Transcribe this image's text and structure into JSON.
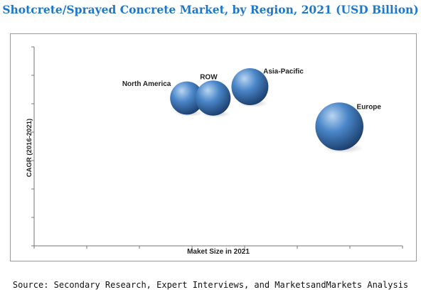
{
  "title": "Shotcrete/Sprayed Concrete Market, by Region, 2021 (USD Billion)",
  "source": "Source: Secondary Research, Expert Interviews, and MarketsandMarkets Analysis",
  "colors": {
    "title": "#1f77c8",
    "bubble_light": "#b9d6f2",
    "bubble_mid": "#4a86c8",
    "bubble_dark": "#1c3f6e",
    "axis": "#777777"
  },
  "chart_data": {
    "type": "scatter",
    "variant": "bubble",
    "xlabel": "Maket Size in 2021",
    "ylabel": "CAGR (2016-2021)",
    "xlim": [
      0,
      7
    ],
    "ylim": [
      0,
      7
    ],
    "grid": false,
    "legend": "none",
    "tick_labels_shown": false,
    "points": [
      {
        "label": "North America",
        "x": 2.9,
        "y": 5.2,
        "size": 0.9
      },
      {
        "label": "ROW",
        "x": 3.4,
        "y": 5.2,
        "size": 0.95
      },
      {
        "label": "Asia-Pacific",
        "x": 4.1,
        "y": 5.6,
        "size": 1.0
      },
      {
        "label": "Europe",
        "x": 5.8,
        "y": 4.2,
        "size": 1.3
      }
    ]
  }
}
